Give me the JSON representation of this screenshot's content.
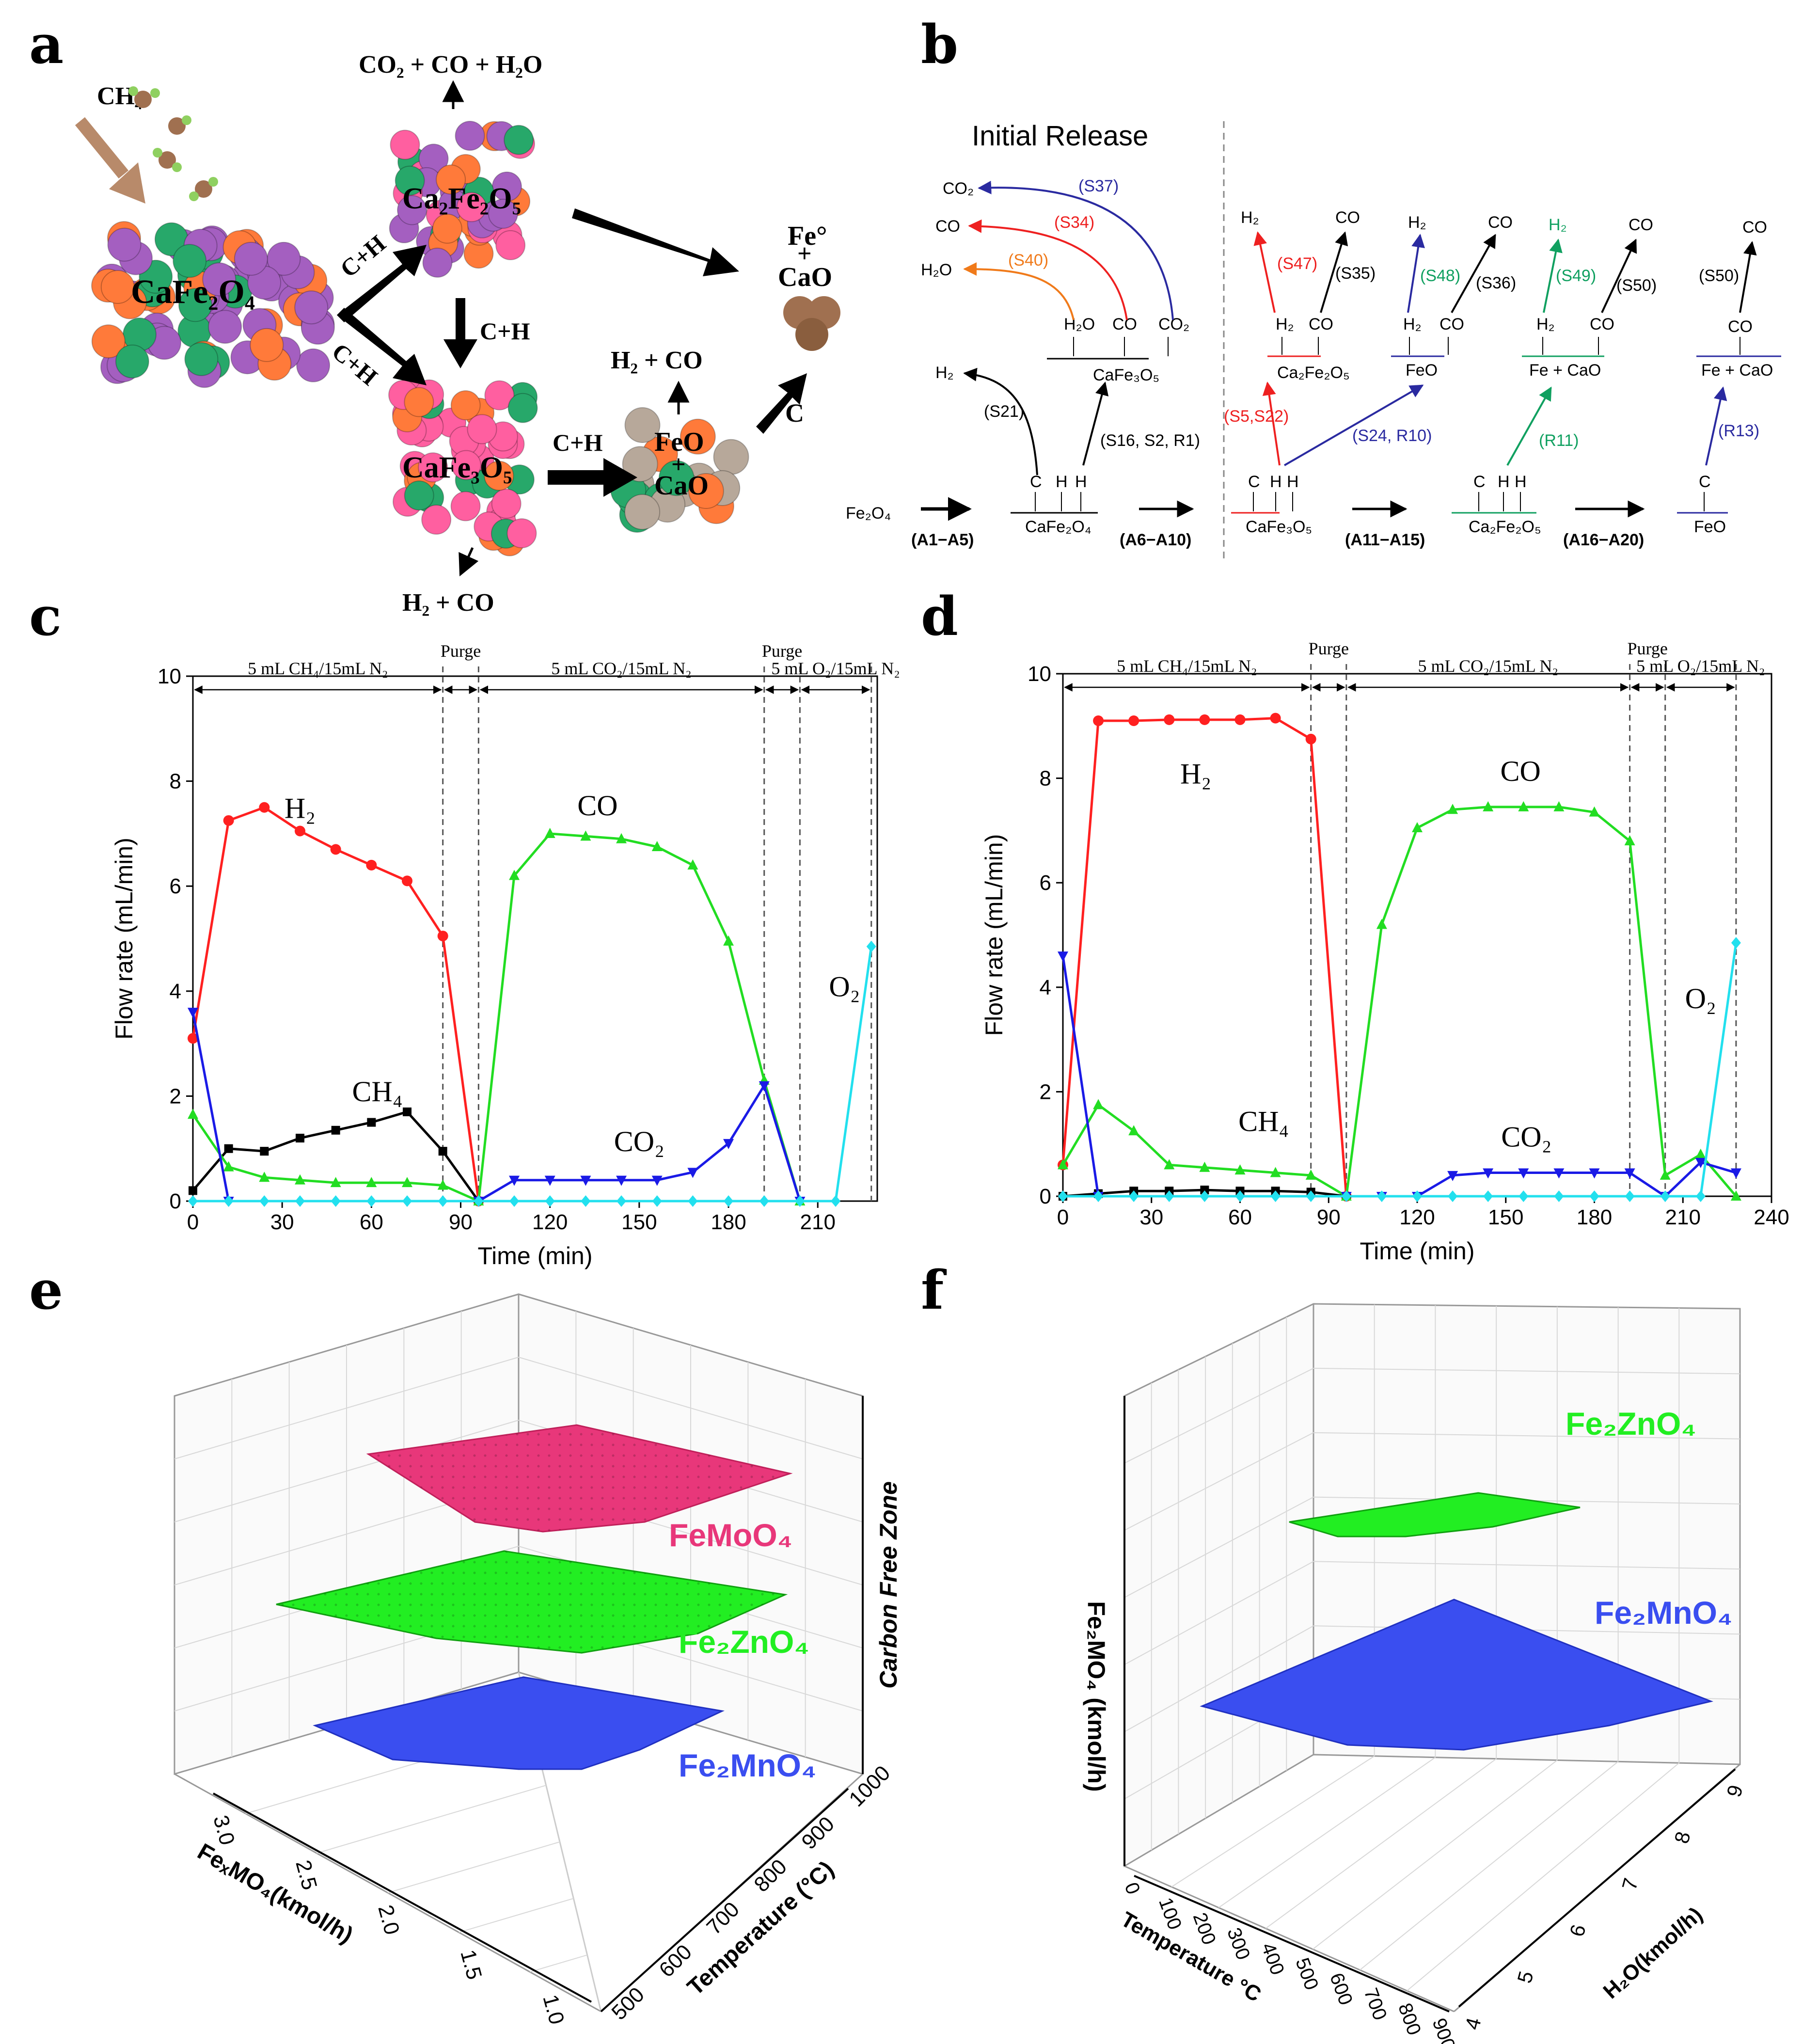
{
  "colors": {
    "h2": "#ff2020",
    "co": "#22dd22",
    "co2": "#1a1ae6",
    "ch4": "#000000",
    "o2": "#22e0ee",
    "ca": "#a45fc0",
    "fe": "#ff7a3a",
    "o": "#27a86a",
    "fe_pink": "#ff5fa0",
    "brown": "#a07050",
    "fegray": "#b7a89a",
    "s_red": "#ee2020",
    "s_orange": "#f07a1a",
    "s_blue": "#2a2aa0",
    "s_green": "#10a060",
    "femoo4": "#e8377a",
    "fe2zno4": "#22ee22",
    "fe2mno4": "#3a4ef0"
  },
  "panels": {
    "a": "a",
    "b": "b",
    "c": "c",
    "d": "d",
    "e": "e",
    "f": "f"
  },
  "panel_a": {
    "ch4": "CH₄",
    "cafe2o4": "CaFe₂O₄",
    "ca2fe2o5": "Ca₂Fe₂O₅",
    "cafe3o5": "CaFe₃O₅",
    "feo": "FeO",
    "feo_plus": "+",
    "feo_cao": "CaO",
    "fe0": "Fe°",
    "fe0_plus": "+",
    "fe0_cao": "CaO",
    "top_products": "CO₂ + CO + H₂O",
    "bottom_products": "H₂ + CO",
    "mid_products": "H₂ + CO",
    "ch_top": "C+H",
    "ch_low": "C+H",
    "ch_down": "C+H",
    "ch_right": "C+H",
    "c_label": "C"
  },
  "panel_b": {
    "initial_release": "Initial Release",
    "fe2o4": "Fe₂O₄",
    "a1": "(A1−A5)",
    "a6": "(A6−A10)",
    "a11": "(A11−A15)",
    "a16": "(A16−A20)",
    "cafe2o4": "CaFe₂O₄",
    "cafe3o5": "CaFe₃O₅",
    "cafe3o5_top": "CaFe₃O₅",
    "ca2fe2o5": "Ca₂Fe₂O₅",
    "ca2fe2o5_top": "Ca₂Fe₂O₅",
    "feo": "FeO",
    "feo_top": "FeO",
    "fecao": "Fe + CaO",
    "fecao_right": "Fe + CaO",
    "c": "C",
    "h": "H",
    "co": "CO",
    "co2": "CO₂",
    "h2": "H₂",
    "h2o": "H₂O",
    "s37": "(S37)",
    "s34": "(S34)",
    "s40": "(S40)",
    "s21": "(S21)",
    "s16": "(S16, S2, R1)",
    "s47": "(S47)",
    "s35": "(S35)",
    "s48": "(S48)",
    "s36": "(S36)",
    "s49": "(S49)",
    "s50": "(S50)",
    "s50b": "(S50)",
    "s5": "(S5,S22)",
    "s24": "(S24, R10)",
    "r11": "(R11)",
    "r13": "(R13)"
  },
  "chart_data": [
    {
      "panel": "c",
      "type": "line",
      "xlabel": "Time (min)",
      "ylabel": "Flow rate (mL/min)",
      "xlim": [
        0,
        230
      ],
      "ylim": [
        0,
        10
      ],
      "xticks": [
        0,
        30,
        60,
        90,
        120,
        150,
        180,
        210
      ],
      "yticks": [
        0,
        2,
        4,
        6,
        8,
        10
      ],
      "phases": [
        {
          "label": "5 mL CH₄/15mL N₂",
          "x0": 0,
          "x1": 84
        },
        {
          "label": "Purge",
          "x0": 84,
          "x1": 96
        },
        {
          "label": "5 mL CO₂/15mL N₂",
          "x0": 96,
          "x1": 192
        },
        {
          "label": "Purge",
          "x0": 192,
          "x1": 204
        },
        {
          "label": "5 mL O₂/15mL N₂",
          "x0": 204,
          "x1": 228
        }
      ],
      "dividers": [
        84,
        96,
        192,
        204,
        228
      ],
      "series": [
        {
          "name": "H₂",
          "key": "h2",
          "marker": "circle",
          "x": [
            0,
            12,
            24,
            36,
            48,
            60,
            72,
            84,
            96
          ],
          "y": [
            3.1,
            7.25,
            7.5,
            7.05,
            6.7,
            6.4,
            6.1,
            5.05,
            0
          ]
        },
        {
          "name": "CH₄",
          "key": "ch4",
          "marker": "square",
          "x": [
            0,
            12,
            24,
            36,
            48,
            60,
            72,
            84,
            96
          ],
          "y": [
            0.2,
            1.0,
            0.95,
            1.2,
            1.35,
            1.5,
            1.7,
            0.95,
            0
          ]
        },
        {
          "name": "CO",
          "key": "co",
          "marker": "triangle",
          "x": [
            0,
            12,
            24,
            36,
            48,
            60,
            72,
            84,
            96,
            108,
            120,
            132,
            144,
            156,
            168,
            180,
            192,
            204
          ],
          "y": [
            1.65,
            0.65,
            0.45,
            0.4,
            0.35,
            0.35,
            0.35,
            0.3,
            0,
            6.2,
            7.0,
            6.95,
            6.9,
            6.75,
            6.4,
            4.95,
            2.3,
            0
          ]
        },
        {
          "name": "CO₂",
          "key": "co2",
          "marker": "tri-down",
          "x": [
            0,
            12,
            96,
            108,
            120,
            132,
            144,
            156,
            168,
            180,
            192,
            204
          ],
          "y": [
            3.6,
            0,
            0,
            0.4,
            0.4,
            0.4,
            0.4,
            0.4,
            0.55,
            1.1,
            2.2,
            0
          ]
        },
        {
          "name": "O₂",
          "key": "o2",
          "marker": "diamond",
          "x": [
            0,
            12,
            24,
            36,
            48,
            60,
            72,
            84,
            96,
            108,
            120,
            132,
            144,
            156,
            168,
            180,
            192,
            204,
            216,
            228
          ],
          "y": [
            0,
            0,
            0,
            0,
            0,
            0,
            0,
            0,
            0,
            0,
            0,
            0,
            0,
            0,
            0,
            0,
            0,
            0,
            0,
            4.85
          ]
        }
      ],
      "labels": [
        {
          "text": "H₂",
          "x": 36,
          "y": 7.3
        },
        {
          "text": "CO",
          "x": 136,
          "y": 7.35
        },
        {
          "text": "CH₄",
          "x": 62,
          "y": 1.9
        },
        {
          "text": "CO₂",
          "x": 150,
          "y": 0.95
        },
        {
          "text": "O₂",
          "x": 219,
          "y": 3.9
        }
      ]
    },
    {
      "panel": "d",
      "type": "line",
      "xlabel": "Time (min)",
      "ylabel": "Flow rate (mL/min)",
      "xlim": [
        0,
        240
      ],
      "ylim": [
        0,
        10
      ],
      "xticks": [
        0,
        30,
        60,
        90,
        120,
        150,
        180,
        210,
        240
      ],
      "yticks": [
        0,
        2,
        4,
        6,
        8,
        10
      ],
      "phases": [
        {
          "label": "5 mL CH₄/15mL N₂",
          "x0": 0,
          "x1": 84
        },
        {
          "label": "Purge",
          "x0": 84,
          "x1": 96
        },
        {
          "label": "5 mL CO₂/15mL N₂",
          "x0": 96,
          "x1": 192
        },
        {
          "label": "Purge",
          "x0": 192,
          "x1": 204
        },
        {
          "label": "5 mL O₂/15mL N₂",
          "x0": 204,
          "x1": 228
        }
      ],
      "dividers": [
        84,
        96,
        192,
        204,
        228
      ],
      "series": [
        {
          "name": "H₂",
          "key": "h2",
          "marker": "circle",
          "x": [
            0,
            12,
            24,
            36,
            48,
            60,
            72,
            84,
            96
          ],
          "y": [
            0.6,
            9.1,
            9.1,
            9.12,
            9.12,
            9.12,
            9.15,
            8.75,
            0
          ]
        },
        {
          "name": "CH₄",
          "key": "ch4",
          "marker": "square",
          "x": [
            0,
            12,
            24,
            36,
            48,
            60,
            72,
            84,
            96
          ],
          "y": [
            0,
            0.05,
            0.1,
            0.1,
            0.12,
            0.1,
            0.1,
            0.08,
            0
          ]
        },
        {
          "name": "CO",
          "key": "co",
          "marker": "triangle",
          "x": [
            0,
            12,
            24,
            36,
            48,
            60,
            72,
            84,
            96,
            108,
            120,
            132,
            144,
            156,
            168,
            180,
            192,
            204,
            216,
            228
          ],
          "y": [
            0.6,
            1.75,
            1.25,
            0.6,
            0.55,
            0.5,
            0.45,
            0.4,
            0,
            5.2,
            7.05,
            7.4,
            7.45,
            7.45,
            7.45,
            7.35,
            6.8,
            0.4,
            0.8,
            0
          ]
        },
        {
          "name": "CO₂",
          "key": "co2",
          "marker": "tri-down",
          "x": [
            0,
            12,
            96,
            108,
            120,
            132,
            144,
            156,
            168,
            180,
            192,
            204,
            216,
            228
          ],
          "y": [
            4.6,
            0,
            0,
            0,
            0,
            0.4,
            0.45,
            0.45,
            0.45,
            0.45,
            0.45,
            0,
            0.65,
            0.45
          ]
        },
        {
          "name": "O₂",
          "key": "o2",
          "marker": "diamond",
          "x": [
            0,
            12,
            24,
            36,
            48,
            60,
            72,
            84,
            96,
            108,
            120,
            132,
            144,
            156,
            168,
            180,
            192,
            204,
            216,
            228
          ],
          "y": [
            0,
            0,
            0,
            0,
            0,
            0,
            0,
            0,
            0,
            0,
            0,
            0,
            0,
            0,
            0,
            0,
            0,
            0,
            0,
            4.85
          ]
        }
      ],
      "labels": [
        {
          "text": "H₂",
          "x": 45,
          "y": 7.9
        },
        {
          "text": "CO",
          "x": 155,
          "y": 7.95
        },
        {
          "text": "CH₄",
          "x": 68,
          "y": 1.25
        },
        {
          "text": "CO₂",
          "x": 157,
          "y": 0.95
        },
        {
          "text": "O₂",
          "x": 216,
          "y": 3.6
        }
      ]
    }
  ],
  "panel_e": {
    "zlabel": "Carbon Free Zone",
    "xlabel": "FeₓMO₄(kmol/h)",
    "ylabel": "Temperature (°C)",
    "xticks": [
      "3.0",
      "2.5",
      "2.0",
      "1.5",
      "1.0"
    ],
    "yticks": [
      "500",
      "600",
      "700",
      "800",
      "900",
      "1000"
    ],
    "layers": [
      {
        "name": "FeMoO₄",
        "key": "femoo4"
      },
      {
        "name": "Fe₂ZnO₄",
        "key": "fe2zno4"
      },
      {
        "name": "Fe₂MnO₄",
        "key": "fe2mno4"
      }
    ]
  },
  "panel_f": {
    "zlabel": "Fe₂MO₄ (kmol/h)",
    "xlabel": "Temperature °C",
    "ylabel": "H₂O(kmol/h)",
    "xticks": [
      "0",
      "100",
      "200",
      "300",
      "400",
      "500",
      "600",
      "700",
      "800",
      "900"
    ],
    "yticks": [
      "4",
      "5",
      "6",
      "7",
      "8",
      "9"
    ],
    "layers": [
      {
        "name": "Fe₂ZnO₄",
        "key": "fe2zno4"
      },
      {
        "name": "Fe₂MnO₄",
        "key": "fe2mno4"
      }
    ]
  }
}
